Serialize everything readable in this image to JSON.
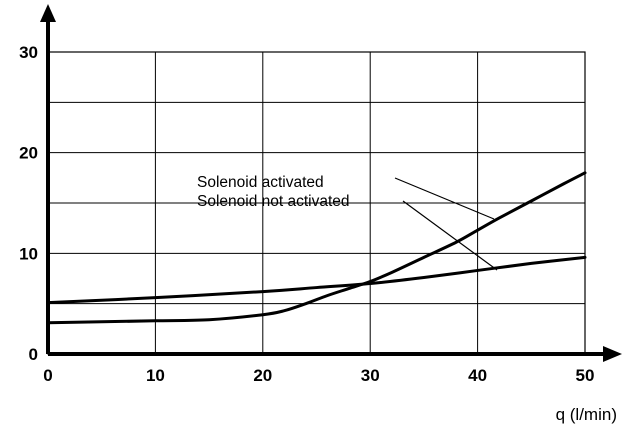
{
  "chart_data": {
    "type": "line",
    "title": "",
    "xlabel": "q (l/min)",
    "ylabel": "",
    "xlim": [
      0,
      50
    ],
    "ylim": [
      0,
      30
    ],
    "x_ticks": [
      "0",
      "10",
      "20",
      "30",
      "40",
      "50"
    ],
    "y_ticks": [
      "0",
      "10",
      "20",
      "30"
    ],
    "grid": true,
    "series": [
      {
        "name": "Solenoid activated",
        "x": [
          0,
          5,
          10,
          15,
          20,
          22,
          24,
          26,
          28,
          30,
          32,
          35,
          38,
          40,
          42,
          45,
          48,
          50
        ],
        "y": [
          3.1,
          3.2,
          3.3,
          3.4,
          3.9,
          4.3,
          5.0,
          5.8,
          6.5,
          7.2,
          8.1,
          9.6,
          11.1,
          12.3,
          13.5,
          15.2,
          16.9,
          18.0
        ]
      },
      {
        "name": "Solenoid not activated",
        "x": [
          0,
          10,
          20,
          25,
          30,
          35,
          40,
          45,
          50
        ],
        "y": [
          5.1,
          5.6,
          6.2,
          6.6,
          7.0,
          7.6,
          8.3,
          9.0,
          9.6
        ]
      }
    ],
    "annotations": [
      {
        "text": "Solenoid activated",
        "points_to": "Solenoid activated"
      },
      {
        "text": "Solenoid not activated",
        "points_to": "Solenoid not activated"
      }
    ]
  }
}
